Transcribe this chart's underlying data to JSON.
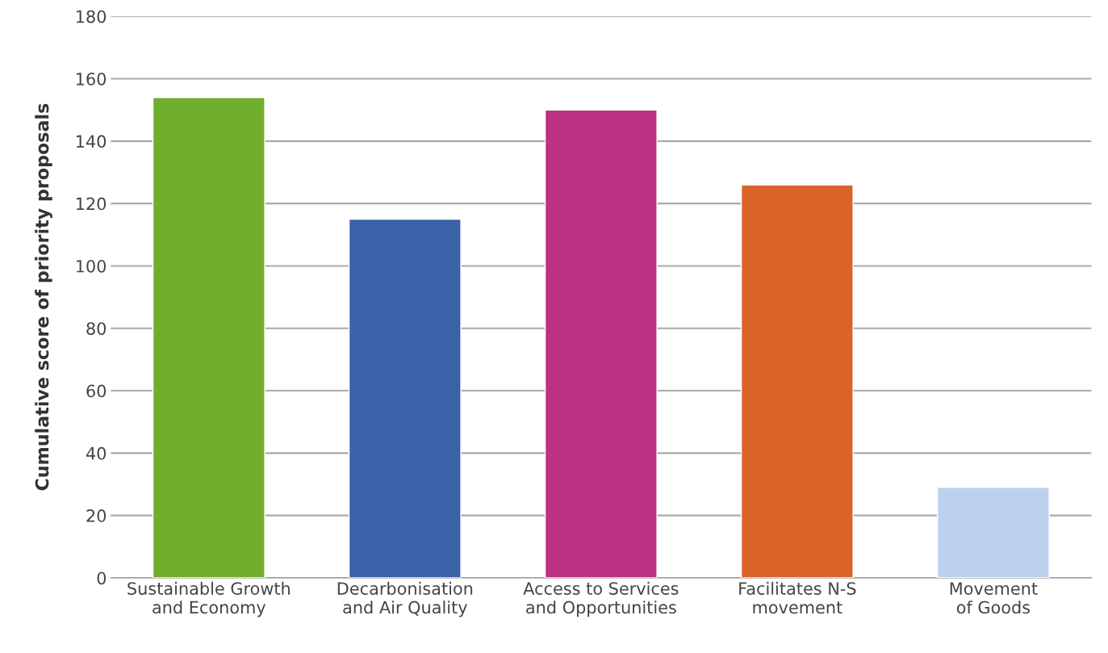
{
  "chart_data": {
    "type": "bar",
    "ylabel": "Cumulative score of priority proposals",
    "categories": [
      "Sustainable Growth\nand Economy",
      "Decarbonisation\nand Air Quality",
      "Access to Services\nand Opportunities",
      "Facilitates N-S\nmovement",
      "Movement\nof Goods"
    ],
    "values": [
      154,
      115,
      150,
      126,
      29
    ],
    "colors": [
      "#72ae2e",
      "#3a62a8",
      "#bb3282",
      "#db632a",
      "#bcd1ee"
    ],
    "ylim": [
      0,
      180
    ],
    "yticks": [
      0,
      20,
      40,
      60,
      80,
      100,
      120,
      140,
      160,
      180
    ],
    "grid": "y"
  }
}
